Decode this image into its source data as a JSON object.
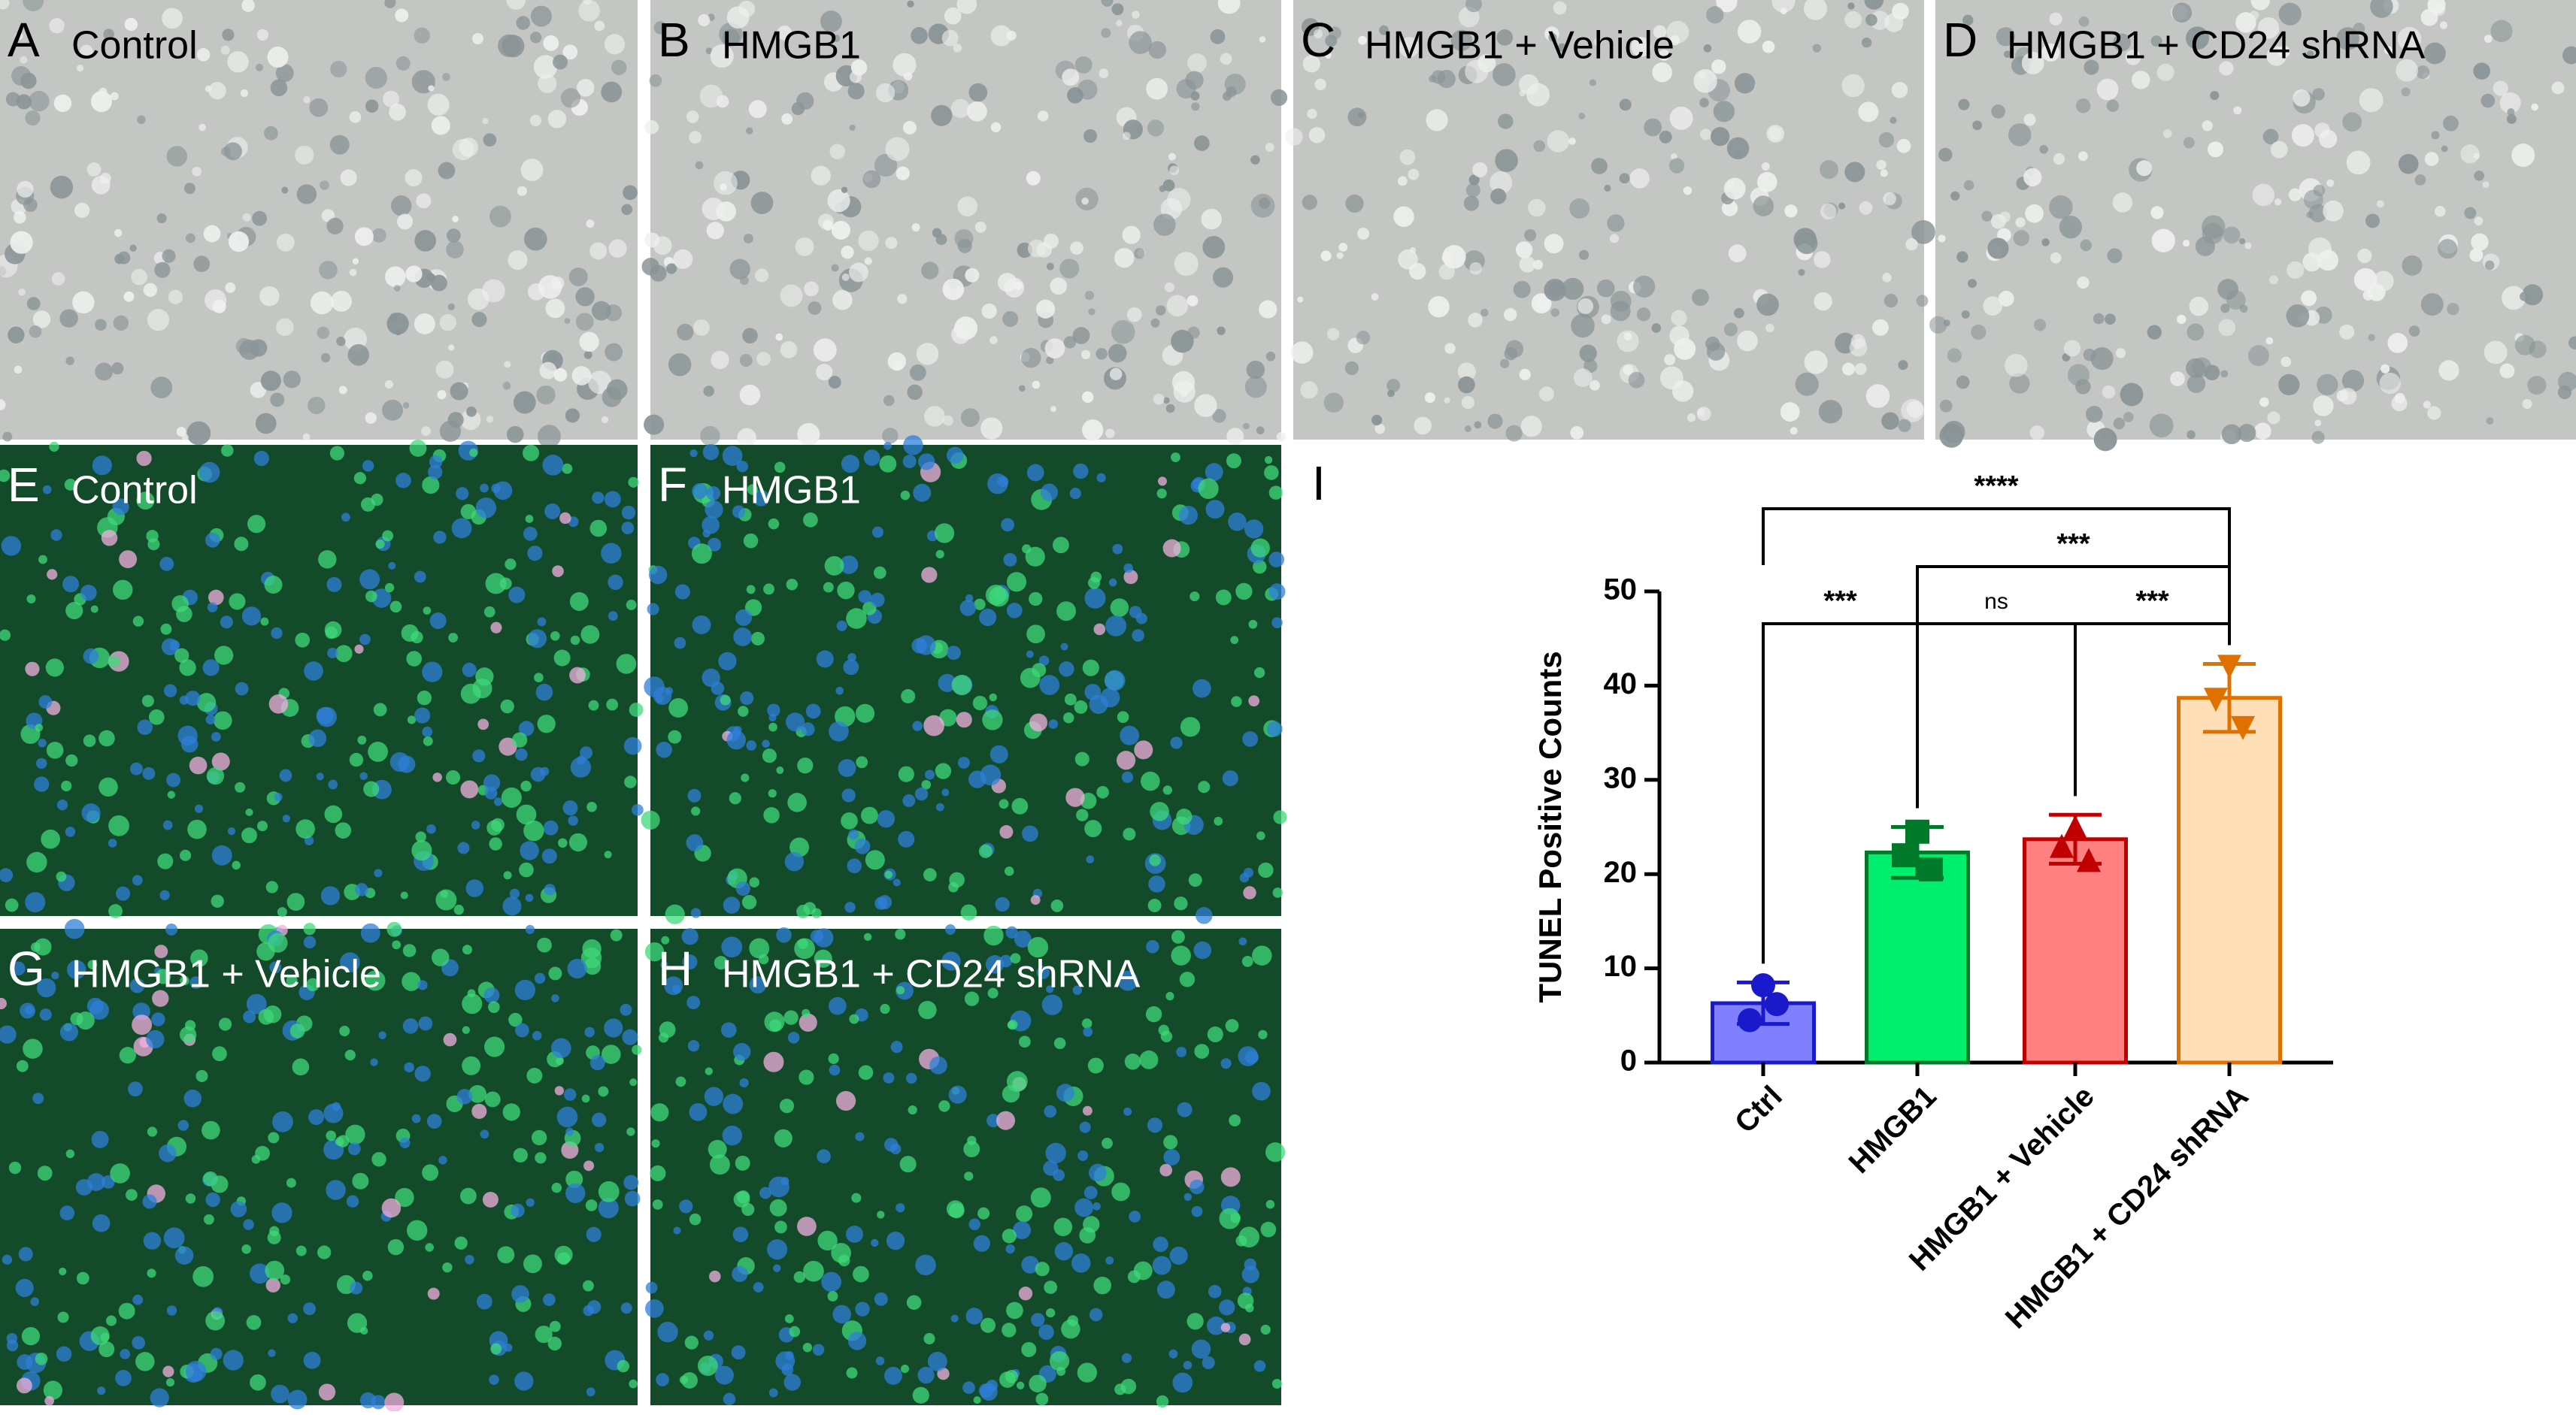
{
  "panels": [
    {
      "letter": "A",
      "label": "Control"
    },
    {
      "letter": "B",
      "label": "HMGB1"
    },
    {
      "letter": "C",
      "label": "HMGB1 + Vehicle"
    },
    {
      "letter": "D",
      "label": "HMGB1 + CD24 shRNA"
    },
    {
      "letter": "E",
      "label": "Control"
    },
    {
      "letter": "F",
      "label": "HMGB1"
    },
    {
      "letter": "G",
      "label": "HMGB1 + Vehicle"
    },
    {
      "letter": "H",
      "label": "HMGB1 + CD24 shRNA"
    }
  ],
  "chart_data": {
    "type": "bar",
    "panel": "I",
    "ylabel": "TUNEL Positive Counts",
    "categories": [
      "Ctrl",
      "HMGB1",
      "HMGB1 + Vehicle",
      "HMGB1 + CD24 shRNA"
    ],
    "values": [
      6.3,
      22.3,
      23.7,
      38.7
    ],
    "errors": [
      2.2,
      2.7,
      2.6,
      3.6
    ],
    "points": [
      [
        8.2,
        4.5,
        6.2
      ],
      [
        24.5,
        22,
        20.5
      ],
      [
        25,
        23,
        21.5
      ],
      [
        42,
        38.5,
        35.5
      ]
    ],
    "colors": [
      "#8080ff",
      "#00ee6e",
      "#ff8080",
      "#ffdfb8"
    ],
    "edge_colors": [
      "#1a1acc",
      "#007a2a",
      "#c00000",
      "#e07000"
    ],
    "ylim": [
      0,
      50
    ],
    "yticks": [
      0,
      10,
      20,
      30,
      40,
      50
    ],
    "annotations": [
      "****",
      "***",
      "***",
      "ns",
      "***"
    ]
  }
}
